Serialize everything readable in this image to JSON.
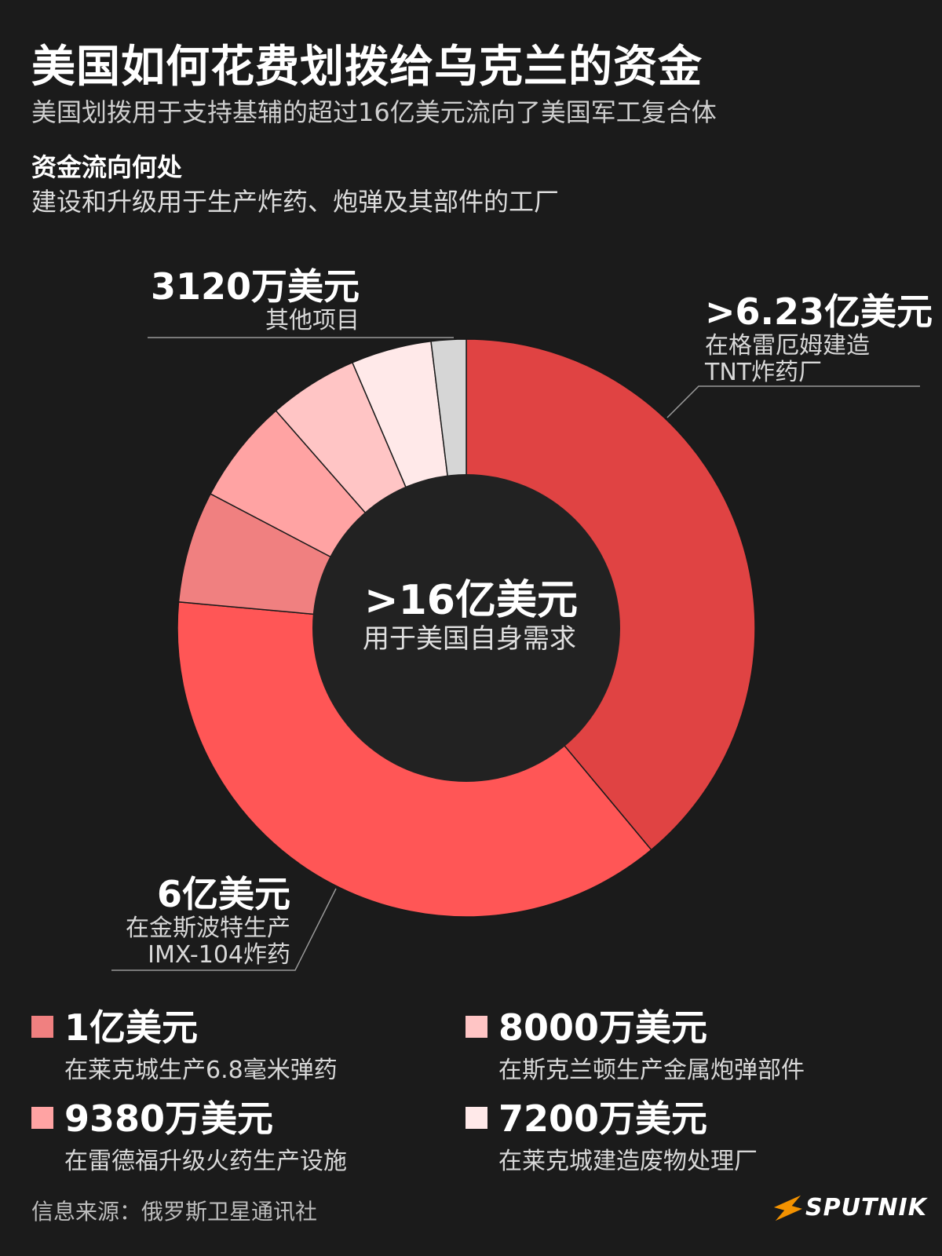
{
  "header": {
    "title": "美国如何花费划拨给乌克兰的资金",
    "subtitle": "美国划拨用于支持基辅的超过16亿美元流向了美国军工复合体",
    "section_heading": "资金流向何处",
    "section_desc": "建设和升级用于生产炸药、炮弹及其部件的工厂"
  },
  "center": {
    "amount": ">16亿美元",
    "label": "用于美国自身需求"
  },
  "callouts": {
    "grayhall": {
      "amount": ">6.23亿美元",
      "line1": "在格雷厄姆建造",
      "line2": "TNT炸药厂"
    },
    "kingsport": {
      "amount": "6亿美元",
      "line1": "在金斯波特生产",
      "line2": "IMX-104炸药"
    },
    "other": {
      "amount": "3120万美元",
      "line1": "其他项目"
    }
  },
  "legend": [
    {
      "amount": "1亿美元",
      "desc": "在莱克城生产6.8毫米弹药",
      "color": "#f08080"
    },
    {
      "amount": "8000万美元",
      "desc": "在斯克兰顿生产金属炮弹部件",
      "color": "#ffc5c5"
    },
    {
      "amount": "9380万美元",
      "desc": "在雷德福升级火药生产设施",
      "color": "#ffa3a3"
    },
    {
      "amount": "7200万美元",
      "desc": "在莱克城建造废物处理厂",
      "color": "#ffe9e9"
    }
  ],
  "footer": {
    "source": "信息来源：俄罗斯卫星通讯社",
    "logo": "SPUTNIK"
  },
  "colors": {
    "background": "#1b1b1b",
    "center_circle": "#222222",
    "separator": "#1a1a1a",
    "leader_line": "#9a9a9a"
  },
  "chart_data": {
    "type": "pie",
    "unit": "万美元",
    "slices": [
      {
        "label": "在格雷厄姆建造TNT炸药厂",
        "value": 62300,
        "color": "#e04343"
      },
      {
        "label": "在金斯波特生产IMX-104炸药",
        "value": 60000,
        "color": "#ff5656"
      },
      {
        "label": "在莱克城生产6.8毫米弹药",
        "value": 10000,
        "color": "#f08080"
      },
      {
        "label": "在雷德福升级火药生产设施",
        "value": 9380,
        "color": "#ffa3a3"
      },
      {
        "label": "在斯克兰顿生产金属炮弹部件",
        "value": 8000,
        "color": "#ffc5c5"
      },
      {
        "label": "在莱克城建造废物处理厂",
        "value": 7200,
        "color": "#ffe9e9"
      },
      {
        "label": "其他项目",
        "value": 3120,
        "color": "#d6d6d6"
      }
    ]
  }
}
